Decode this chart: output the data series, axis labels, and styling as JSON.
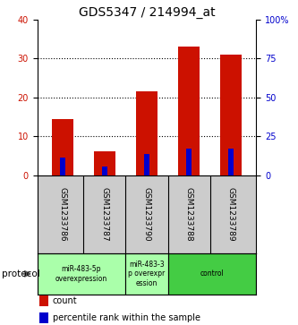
{
  "title": "GDS5347 / 214994_at",
  "samples": [
    "GSM1233786",
    "GSM1233787",
    "GSM1233790",
    "GSM1233788",
    "GSM1233789"
  ],
  "count_values": [
    14.5,
    6.2,
    21.5,
    33.0,
    31.0
  ],
  "percentile_values": [
    11.5,
    6.0,
    14.0,
    17.5,
    17.0
  ],
  "left_ylim": [
    0,
    40
  ],
  "right_ylim": [
    0,
    100
  ],
  "left_yticks": [
    0,
    10,
    20,
    30,
    40
  ],
  "right_yticks": [
    0,
    25,
    50,
    75,
    100
  ],
  "right_yticklabels": [
    "0",
    "25",
    "50",
    "75",
    "100%"
  ],
  "bar_color": "#cc1100",
  "percentile_color": "#0000cc",
  "bar_width": 0.5,
  "protocol_groups": [
    {
      "label": "miR-483-5p\noverexpression",
      "start": 0,
      "end": 2,
      "color": "#aaffaa"
    },
    {
      "label": "miR-483-3\np overexpr\nession",
      "start": 2,
      "end": 3,
      "color": "#aaffaa"
    },
    {
      "label": "control",
      "start": 3,
      "end": 5,
      "color": "#44cc44"
    }
  ],
  "protocol_label": "protocol",
  "legend_count_label": "count",
  "legend_percentile_label": "percentile rank within the sample",
  "title_fontsize": 10,
  "tick_fontsize": 7,
  "label_fontsize": 7.5
}
